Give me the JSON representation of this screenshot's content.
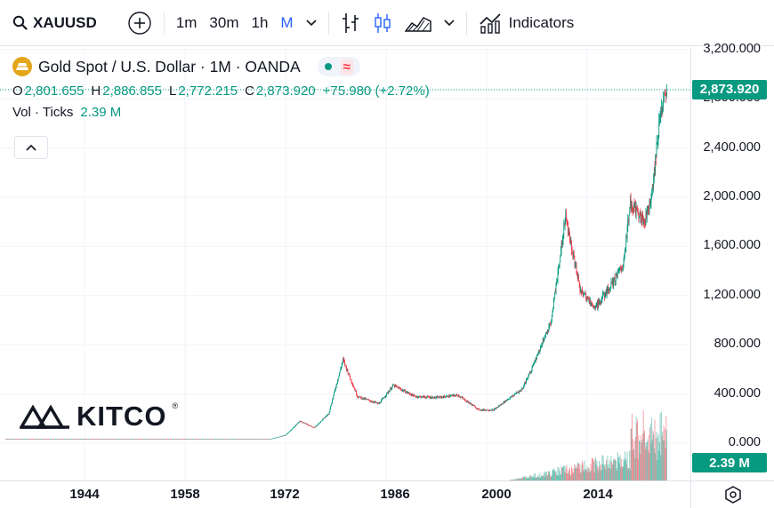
{
  "toolbar": {
    "symbol": "XAUUSD",
    "intervals": [
      "1m",
      "30m",
      "1h",
      "M"
    ],
    "active_interval": "M",
    "indicators_label": "Indicators"
  },
  "legend": {
    "title": "Gold Spot / U.S. Dollar · 1M · OANDA",
    "ohlc": [
      {
        "key": "O",
        "value": "2,801.655"
      },
      {
        "key": "H",
        "value": "2,886.855"
      },
      {
        "key": "L",
        "value": "2,772.215"
      },
      {
        "key": "C",
        "value": "2,873.920"
      }
    ],
    "change": "+75.980 (+2.72%)",
    "vol_label": "Vol · Ticks",
    "vol_value": "2.39 M"
  },
  "colors": {
    "up": "#089981",
    "down": "#f23645",
    "accent": "#2962ff"
  },
  "price_axis": {
    "labels": [
      "3,200.000",
      "2,800.000",
      "2,400.000",
      "2,000.000",
      "1,600.000",
      "1,200.000",
      "800.000",
      "400.000",
      "0.000"
    ],
    "last_price_badge": "2,873.920",
    "volume_badge": "2.39 M"
  },
  "time_axis": {
    "labels": [
      "1944",
      "1958",
      "1972",
      "1986",
      "2000",
      "2014"
    ]
  },
  "watermark": {
    "text": "KITCO"
  },
  "chart_data": {
    "type": "candlestick",
    "title": "Gold Spot / U.S. Dollar · 1M · OANDA",
    "x": [
      1933,
      1944,
      1958,
      1970,
      1972,
      1974,
      1976,
      1978,
      1980,
      1982,
      1985,
      1987,
      1990,
      1993,
      1996,
      1999,
      2001,
      2003,
      2005,
      2007,
      2009,
      2011,
      2013,
      2015,
      2017,
      2019,
      2020,
      2022,
      2023,
      2024,
      2025
    ],
    "y": [
      35,
      35,
      35,
      36,
      65,
      180,
      125,
      240,
      680,
      380,
      320,
      470,
      380,
      370,
      390,
      270,
      270,
      360,
      440,
      700,
      1000,
      1850,
      1250,
      1100,
      1250,
      1450,
      1950,
      1800,
      2000,
      2600,
      2874
    ],
    "ylim": [
      0,
      3300
    ],
    "xlim": [
      1930,
      2032
    ],
    "last_close": 2873.92
  }
}
